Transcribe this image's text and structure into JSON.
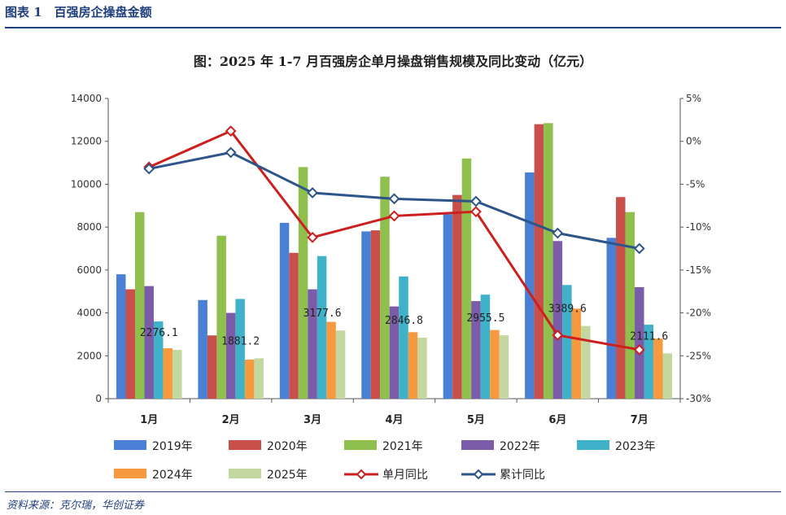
{
  "header": {
    "figure_label": "图表 1　百强房企操盘金额"
  },
  "source_note": "资料来源：克尔瑞，华创证券",
  "chart_data": {
    "type": "bar",
    "title": "图：2025 年 1-7 月百强房企单月操盘销售规模及同比变动（亿元）",
    "categories": [
      "1月",
      "2月",
      "3月",
      "4月",
      "5月",
      "6月",
      "7月"
    ],
    "ylim": [
      0,
      14000
    ],
    "y_ticks": [
      0,
      2000,
      4000,
      6000,
      8000,
      10000,
      12000,
      14000
    ],
    "y2lim": [
      -30,
      5
    ],
    "y2_ticks": [
      "5%",
      "0%",
      "-5%",
      "-10%",
      "-15%",
      "-20%",
      "-25%",
      "-30%"
    ],
    "y2_tick_values": [
      5,
      0,
      -5,
      -10,
      -15,
      -20,
      -25,
      -30
    ],
    "grid": false,
    "legend_position": "bottom",
    "series": [
      {
        "name": "2019年",
        "color": "#4a7fd6",
        "values": [
          5800,
          4600,
          8200,
          7800,
          8600,
          10550,
          7500
        ]
      },
      {
        "name": "2020年",
        "color": "#c94f4b",
        "values": [
          5100,
          2950,
          6800,
          7850,
          9500,
          12800,
          9400
        ]
      },
      {
        "name": "2021年",
        "color": "#8fc04e",
        "values": [
          8700,
          7600,
          10800,
          10350,
          11200,
          12850,
          8700
        ]
      },
      {
        "name": "2022年",
        "color": "#7b5ca8",
        "values": [
          5250,
          4000,
          5100,
          4300,
          4550,
          7350,
          5200
        ]
      },
      {
        "name": "2023年",
        "color": "#3fb2c9",
        "values": [
          3600,
          4650,
          6650,
          5700,
          4850,
          5300,
          3450
        ]
      },
      {
        "name": "2024年",
        "color": "#f79a3f",
        "values": [
          2350,
          1820,
          3580,
          3100,
          3200,
          4200,
          2800
        ]
      },
      {
        "name": "2025年",
        "color": "#c3d89e",
        "values": [
          2276.1,
          1881.2,
          3177.6,
          2846.8,
          2955.5,
          3389.6,
          2111.6
        ]
      }
    ],
    "data_labels_2025": [
      "2276.1",
      "1881.2",
      "3177.6",
      "2846.8",
      "2955.5",
      "3389.6",
      "2111.6"
    ],
    "line_series": [
      {
        "name": "单月同比",
        "color": "#cc1f1f",
        "axis": "right",
        "values": [
          -3.0,
          1.2,
          -11.2,
          -8.7,
          -8.2,
          -22.6,
          -24.3
        ]
      },
      {
        "name": "累计同比",
        "color": "#2d5589",
        "axis": "right",
        "values": [
          -3.2,
          -1.3,
          -6.0,
          -6.7,
          -7.0,
          -10.7,
          -12.5
        ]
      }
    ]
  }
}
